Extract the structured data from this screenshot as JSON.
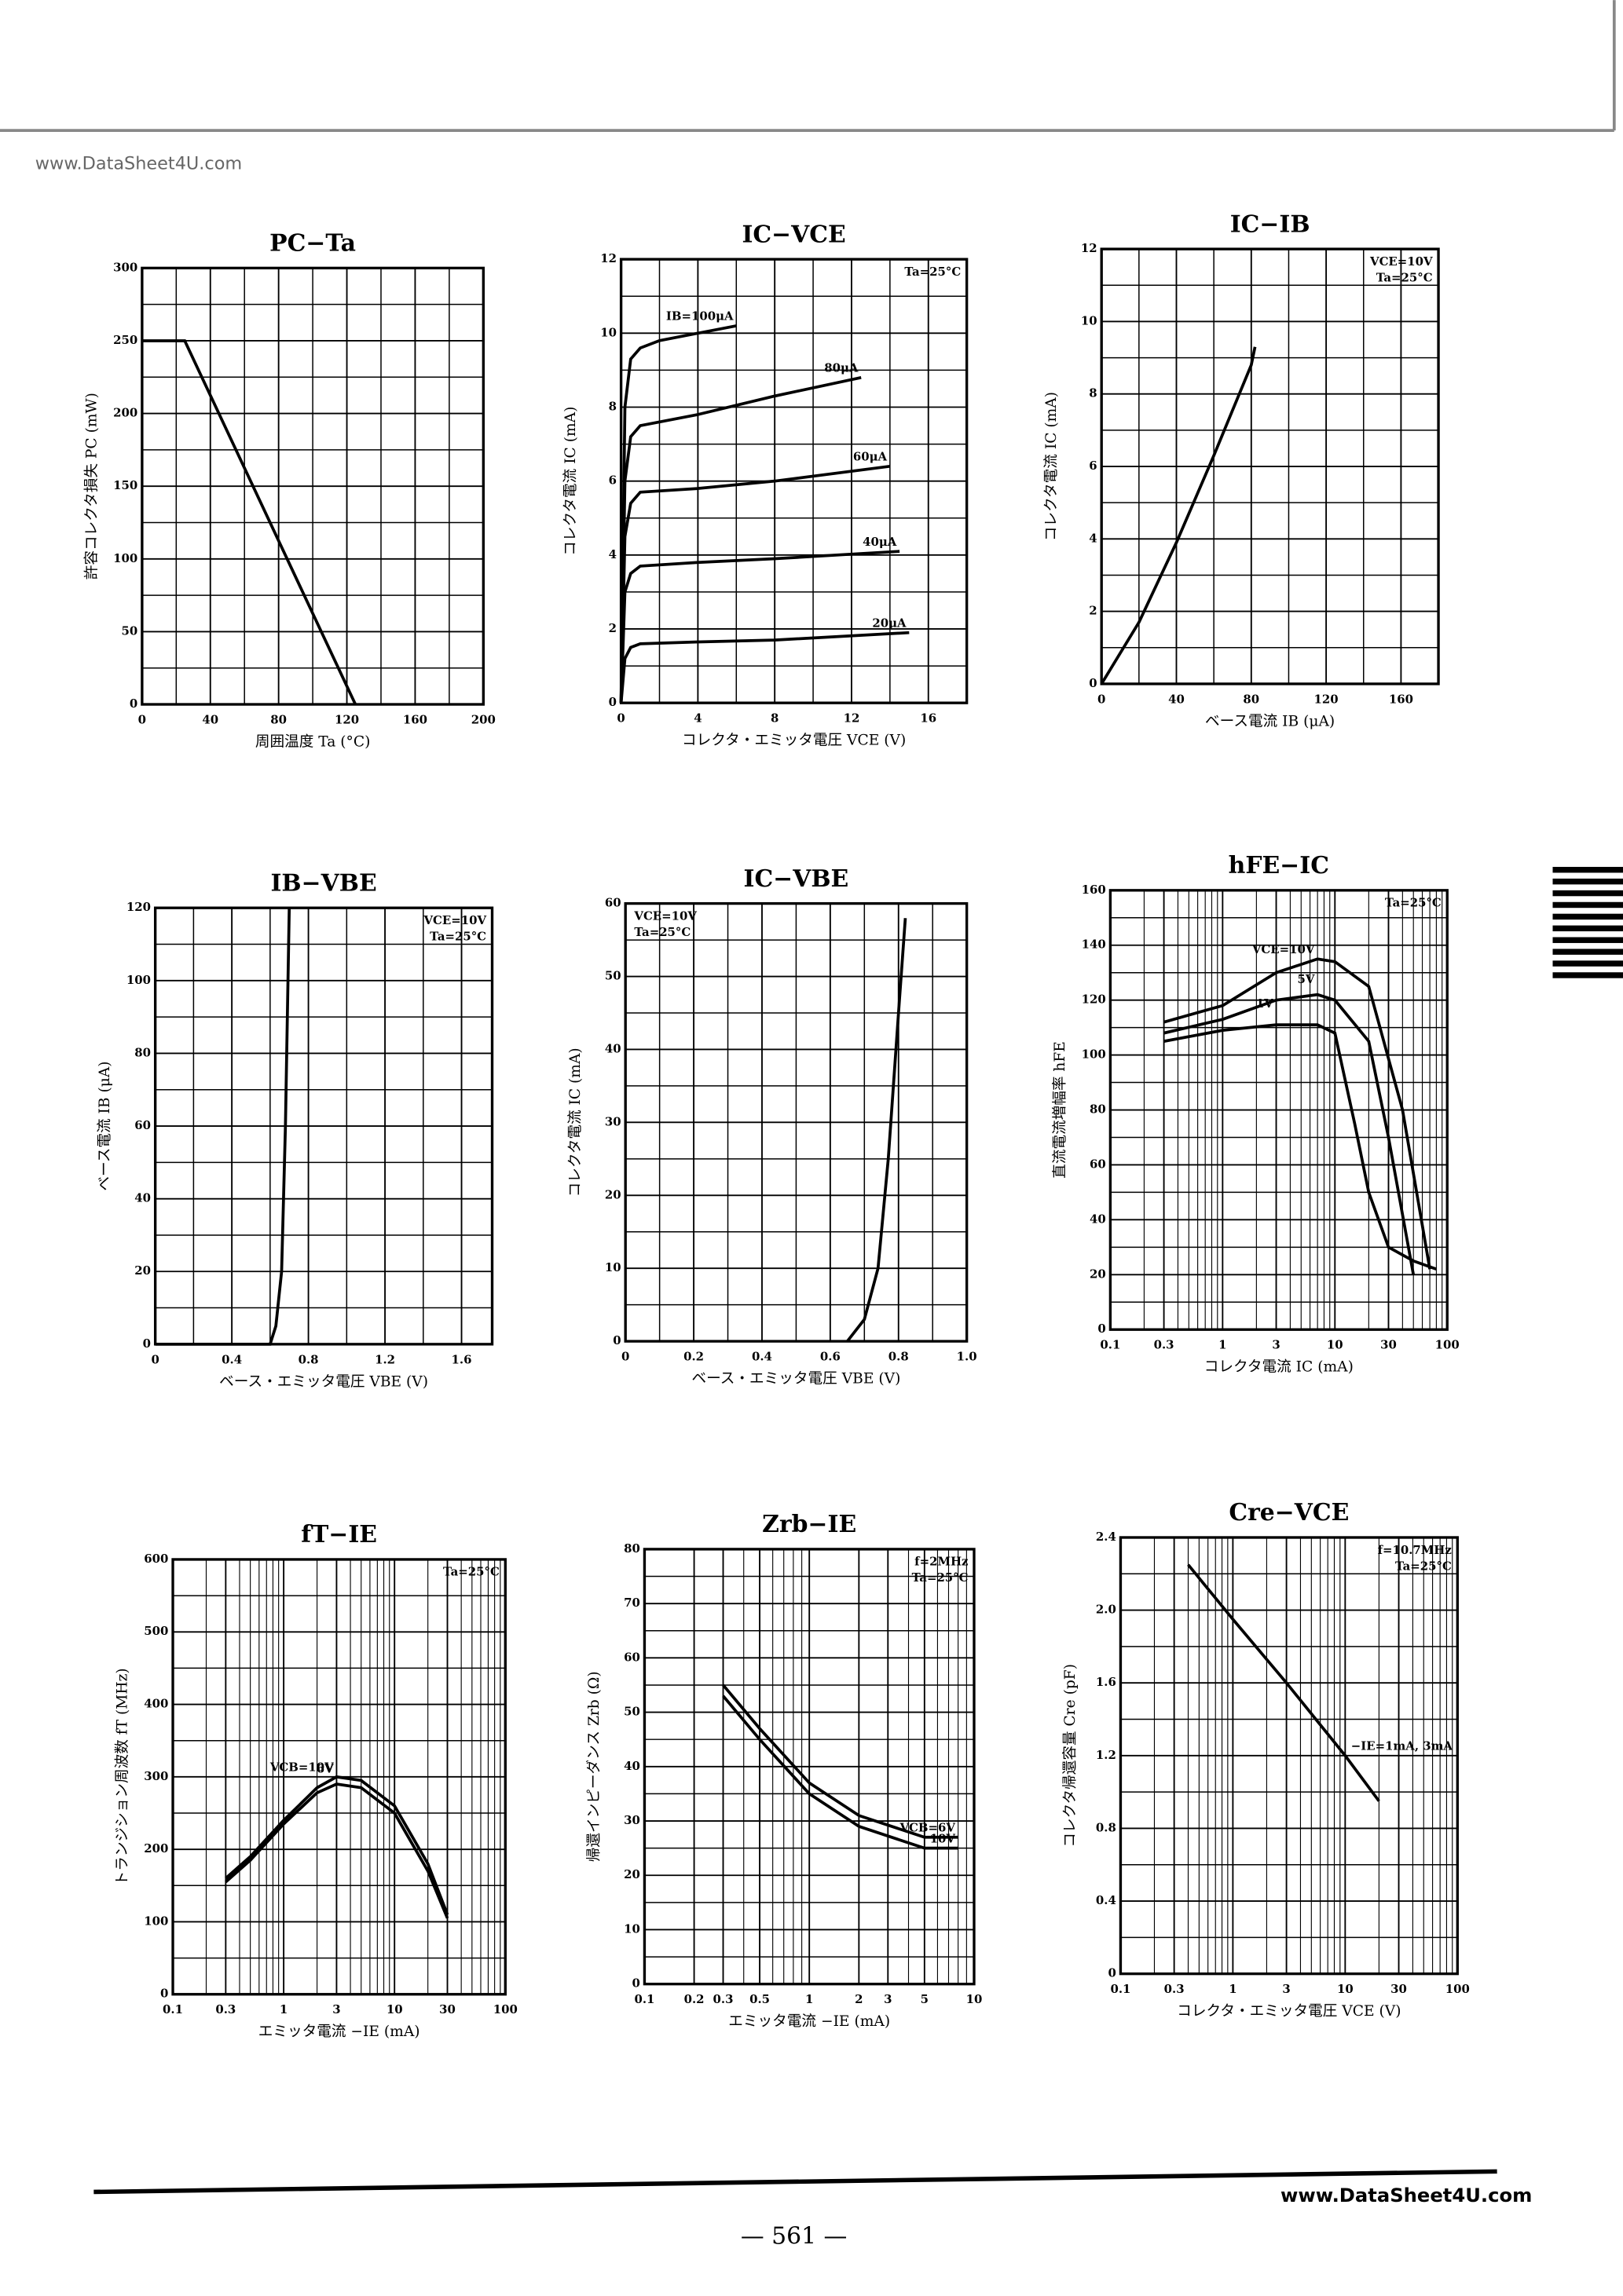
{
  "header": {
    "watermark": "www.DataSheet4U.com"
  },
  "footer": {
    "watermark": "www.DataSheet4U.com",
    "page": "— 561 —"
  },
  "chart_data": [
    {
      "type": "line",
      "title": "PC−Ta",
      "xlabel": "周囲温度 Ta (°C)",
      "ylabel": "許容コレクタ損失 PC (mW)",
      "xlim": [
        0,
        200
      ],
      "ylim": [
        0,
        300
      ],
      "xticks": [
        0,
        40,
        80,
        120,
        160,
        200
      ],
      "yticks": [
        0,
        50,
        100,
        150,
        200,
        250,
        300
      ],
      "grid": true,
      "series": [
        {
          "color": "#000000",
          "x": [
            0,
            25,
            125
          ],
          "values": [
            250,
            250,
            0
          ]
        }
      ]
    },
    {
      "type": "line",
      "title": "IC−VCE",
      "xlabel": "コレクタ・エミッタ電圧 VCE (V)",
      "ylabel": "コレクタ電流 IC (mA)",
      "xlim": [
        0,
        18
      ],
      "ylim": [
        0,
        12
      ],
      "xticks": [
        0,
        4,
        8,
        12,
        16
      ],
      "yticks": [
        0,
        2,
        4,
        6,
        8,
        10,
        12
      ],
      "grid": true,
      "annotations": [
        "Ta=25°C"
      ],
      "series": [
        {
          "name": "IB=100μA",
          "color": "#000000",
          "x": [
            0,
            0.2,
            0.5,
            1,
            2,
            4,
            6
          ],
          "values": [
            0,
            8,
            9.3,
            9.6,
            9.8,
            10,
            10.2
          ]
        },
        {
          "name": "80μA",
          "color": "#000000",
          "x": [
            0,
            0.2,
            0.5,
            1,
            4,
            8,
            12.5
          ],
          "values": [
            0,
            6,
            7.2,
            7.5,
            7.8,
            8.3,
            8.8
          ]
        },
        {
          "name": "60μA",
          "color": "#000000",
          "x": [
            0,
            0.2,
            0.5,
            1,
            4,
            8,
            14
          ],
          "values": [
            0,
            4.5,
            5.4,
            5.7,
            5.8,
            6,
            6.4
          ]
        },
        {
          "name": "40μA",
          "color": "#000000",
          "x": [
            0,
            0.2,
            0.5,
            1,
            4,
            8,
            14.5
          ],
          "values": [
            0,
            3,
            3.5,
            3.7,
            3.8,
            3.9,
            4.1
          ]
        },
        {
          "name": "20μA",
          "color": "#000000",
          "x": [
            0,
            0.2,
            0.5,
            1,
            4,
            8,
            15
          ],
          "values": [
            0,
            1.2,
            1.5,
            1.6,
            1.65,
            1.7,
            1.9
          ]
        }
      ]
    },
    {
      "type": "line",
      "title": "IC−IB",
      "xlabel": "ベース電流 IB (μA)",
      "ylabel": "コレクタ電流 IC (mA)",
      "xlim": [
        0,
        180
      ],
      "ylim": [
        0,
        12
      ],
      "xticks": [
        0,
        40,
        80,
        120,
        160
      ],
      "yticks": [
        0,
        2,
        4,
        6,
        8,
        10,
        12
      ],
      "grid": true,
      "annotations": [
        "VCE=10V",
        "Ta=25°C"
      ],
      "series": [
        {
          "color": "#000000",
          "x": [
            0,
            20,
            40,
            60,
            80,
            82
          ],
          "values": [
            0,
            1.7,
            3.9,
            6.3,
            8.8,
            9.3
          ]
        }
      ]
    },
    {
      "type": "line",
      "title": "IB−VBE",
      "xlabel": "ベース・エミッタ電圧 VBE (V)",
      "ylabel": "ベース電流 IB (μA)",
      "xlim": [
        0,
        1.76
      ],
      "ylim": [
        0,
        120
      ],
      "xticks": [
        0,
        0.4,
        0.8,
        1.2,
        1.6
      ],
      "yticks": [
        0,
        20,
        40,
        60,
        80,
        100,
        120
      ],
      "grid": true,
      "annotations": [
        "VCE=10V",
        "Ta=25°C"
      ],
      "series": [
        {
          "color": "#000000",
          "x": [
            0,
            0.6,
            0.63,
            0.66,
            0.68,
            0.7
          ],
          "values": [
            0,
            0,
            5,
            20,
            60,
            120
          ]
        }
      ]
    },
    {
      "type": "line",
      "title": "IC−VBE",
      "xlabel": "ベース・エミッタ電圧 VBE (V)",
      "ylabel": "コレクタ電流 IC (mA)",
      "xlim": [
        0,
        1
      ],
      "ylim": [
        0,
        60
      ],
      "xticks": [
        0,
        0.2,
        0.4,
        0.6,
        0.8,
        {
          "value": 1,
          "label": "1.0"
        }
      ],
      "yticks": [
        0,
        10,
        20,
        30,
        40,
        50,
        60
      ],
      "grid": true,
      "annotations": [
        "VCE=10V",
        "Ta=25°C"
      ],
      "series": [
        {
          "color": "#000000",
          "x": [
            0.65,
            0.7,
            0.74,
            0.77,
            0.8,
            0.82
          ],
          "values": [
            0,
            3,
            10,
            25,
            45,
            58
          ]
        }
      ]
    },
    {
      "type": "line",
      "title": "hFE−IC",
      "xlabel": "コレクタ電流 IC (mA)",
      "ylabel": "直流電流増幅率 hFE",
      "xscale": "log",
      "xlim": [
        0.1,
        100
      ],
      "ylim": [
        0,
        160
      ],
      "xticks": [
        0.1,
        0.3,
        1,
        3,
        10,
        30,
        100
      ],
      "yticks": [
        0,
        20,
        40,
        60,
        80,
        100,
        120,
        140,
        160
      ],
      "grid": true,
      "annotations": [
        "Ta=25°C"
      ],
      "series": [
        {
          "name": "VCE=10V",
          "color": "#000000",
          "x": [
            0.3,
            1,
            3,
            7,
            10,
            20,
            40,
            70
          ],
          "values": [
            112,
            118,
            130,
            135,
            134,
            125,
            80,
            22
          ]
        },
        {
          "name": "5V",
          "color": "#000000",
          "x": [
            0.3,
            1,
            3,
            7,
            10,
            20,
            30,
            50
          ],
          "values": [
            108,
            113,
            120,
            122,
            120,
            105,
            70,
            20
          ]
        },
        {
          "name": "1V",
          "color": "#000000",
          "x": [
            0.3,
            1,
            3,
            7,
            10,
            15,
            20,
            30,
            50,
            80
          ],
          "values": [
            105,
            109,
            111,
            111,
            108,
            75,
            50,
            30,
            25,
            22
          ]
        }
      ]
    },
    {
      "type": "line",
      "title": "fT−IE",
      "xlabel": "エミッタ電流 −IE (mA)",
      "ylabel": "トランジション周波数 fT (MHz)",
      "xscale": "log",
      "xlim": [
        0.1,
        100
      ],
      "ylim": [
        0,
        600
      ],
      "xticks": [
        0.1,
        0.3,
        1,
        3,
        10,
        30,
        100
      ],
      "yticks": [
        0,
        100,
        200,
        300,
        400,
        500,
        600
      ],
      "grid": true,
      "annotations": [
        "Ta=25°C"
      ],
      "series": [
        {
          "name": "VCB=10V",
          "color": "#000000",
          "x": [
            0.3,
            0.5,
            1,
            2,
            3,
            5,
            10,
            20,
            30
          ],
          "values": [
            160,
            190,
            240,
            285,
            300,
            295,
            260,
            180,
            110
          ]
        },
        {
          "name": "6V",
          "color": "#000000",
          "x": [
            0.3,
            0.5,
            1,
            2,
            3,
            5,
            10,
            20,
            30
          ],
          "values": [
            155,
            185,
            235,
            278,
            290,
            285,
            250,
            170,
            105
          ]
        }
      ]
    },
    {
      "type": "line",
      "title": "Zrb−IE",
      "xlabel": "エミッタ電流 −IE (mA)",
      "ylabel": "帰還インピーダンス Zrb (Ω)",
      "xscale": "log",
      "xlim": [
        0.1,
        10
      ],
      "ylim": [
        0,
        80
      ],
      "xticks": [
        0.1,
        0.2,
        0.3,
        0.5,
        1,
        2,
        3,
        5,
        10
      ],
      "yticks": [
        0,
        10,
        20,
        30,
        40,
        50,
        60,
        70,
        80
      ],
      "grid": true,
      "annotations": [
        "f=2MHz",
        "Ta=25°C"
      ],
      "series": [
        {
          "name": "VCB=6V",
          "color": "#000000",
          "x": [
            0.3,
            0.5,
            1,
            2,
            5,
            8
          ],
          "values": [
            55,
            47,
            37,
            31,
            27,
            27
          ]
        },
        {
          "name": "10V",
          "color": "#000000",
          "x": [
            0.3,
            0.5,
            1,
            2,
            5,
            8
          ],
          "values": [
            53,
            45,
            35,
            29,
            25,
            25
          ]
        }
      ]
    },
    {
      "type": "line",
      "title": "Cre−VCE",
      "xlabel": "コレクタ・エミッタ電圧 VCE (V)",
      "ylabel": "コレクタ帰還容量 Cre (pF)",
      "xscale": "log",
      "xlim": [
        0.1,
        100
      ],
      "ylim": [
        0,
        2.4
      ],
      "xticks": [
        0.1,
        0.3,
        1,
        3,
        10,
        30,
        100
      ],
      "yticks": [
        0,
        0.4,
        0.8,
        1.2,
        1.6,
        {
          "value": 2,
          "label": "2.0"
        },
        2.4
      ],
      "grid": true,
      "annotations": [
        "f=10.7MHz",
        "Ta=25°C"
      ],
      "series": [
        {
          "name": "−IE=1mA, 3mA",
          "color": "#000000",
          "x": [
            0.4,
            1,
            3,
            10,
            20
          ],
          "values": [
            2.25,
            1.95,
            1.6,
            1.2,
            0.95
          ]
        }
      ]
    }
  ]
}
